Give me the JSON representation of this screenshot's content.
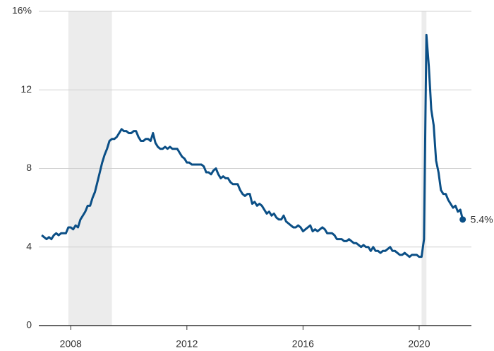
{
  "chart_data": {
    "type": "line",
    "x": [
      2007.0,
      2007.083,
      2007.167,
      2007.25,
      2007.333,
      2007.417,
      2007.5,
      2007.583,
      2007.667,
      2007.75,
      2007.833,
      2007.917,
      2008.0,
      2008.083,
      2008.167,
      2008.25,
      2008.333,
      2008.417,
      2008.5,
      2008.583,
      2008.667,
      2008.75,
      2008.833,
      2008.917,
      2009.0,
      2009.083,
      2009.167,
      2009.25,
      2009.333,
      2009.417,
      2009.5,
      2009.583,
      2009.667,
      2009.75,
      2009.833,
      2009.917,
      2010.0,
      2010.083,
      2010.167,
      2010.25,
      2010.333,
      2010.417,
      2010.5,
      2010.583,
      2010.667,
      2010.75,
      2010.833,
      2010.917,
      2011.0,
      2011.083,
      2011.167,
      2011.25,
      2011.333,
      2011.417,
      2011.5,
      2011.583,
      2011.667,
      2011.75,
      2011.833,
      2011.917,
      2012.0,
      2012.083,
      2012.167,
      2012.25,
      2012.333,
      2012.417,
      2012.5,
      2012.583,
      2012.667,
      2012.75,
      2012.833,
      2012.917,
      2013.0,
      2013.083,
      2013.167,
      2013.25,
      2013.333,
      2013.417,
      2013.5,
      2013.583,
      2013.667,
      2013.75,
      2013.833,
      2013.917,
      2014.0,
      2014.083,
      2014.167,
      2014.25,
      2014.333,
      2014.417,
      2014.5,
      2014.583,
      2014.667,
      2014.75,
      2014.833,
      2014.917,
      2015.0,
      2015.083,
      2015.167,
      2015.25,
      2015.333,
      2015.417,
      2015.5,
      2015.583,
      2015.667,
      2015.75,
      2015.833,
      2015.917,
      2016.0,
      2016.083,
      2016.167,
      2016.25,
      2016.333,
      2016.417,
      2016.5,
      2016.583,
      2016.667,
      2016.75,
      2016.833,
      2016.917,
      2017.0,
      2017.083,
      2017.167,
      2017.25,
      2017.333,
      2017.417,
      2017.5,
      2017.583,
      2017.667,
      2017.75,
      2017.833,
      2017.917,
      2018.0,
      2018.083,
      2018.167,
      2018.25,
      2018.333,
      2018.417,
      2018.5,
      2018.583,
      2018.667,
      2018.75,
      2018.833,
      2018.917,
      2019.0,
      2019.083,
      2019.167,
      2019.25,
      2019.333,
      2019.417,
      2019.5,
      2019.583,
      2019.667,
      2019.75,
      2019.833,
      2019.917,
      2020.0,
      2020.083,
      2020.167,
      2020.25,
      2020.333,
      2020.417,
      2020.5,
      2020.583,
      2020.667,
      2020.75,
      2020.833,
      2020.917,
      2021.0,
      2021.083,
      2021.167,
      2021.25,
      2021.333,
      2021.417,
      2021.5
    ],
    "series": [
      {
        "color": "#0b4f86",
        "values": [
          4.6,
          4.5,
          4.4,
          4.5,
          4.4,
          4.6,
          4.7,
          4.6,
          4.7,
          4.7,
          4.7,
          5.0,
          5.0,
          4.9,
          5.1,
          5.0,
          5.4,
          5.6,
          5.8,
          6.1,
          6.1,
          6.5,
          6.8,
          7.3,
          7.8,
          8.3,
          8.7,
          9.0,
          9.4,
          9.5,
          9.5,
          9.6,
          9.8,
          10.0,
          9.9,
          9.9,
          9.8,
          9.8,
          9.9,
          9.9,
          9.6,
          9.4,
          9.4,
          9.5,
          9.5,
          9.4,
          9.8,
          9.3,
          9.1,
          9.0,
          9.0,
          9.1,
          9.0,
          9.1,
          9.0,
          9.0,
          9.0,
          8.8,
          8.6,
          8.5,
          8.3,
          8.3,
          8.2,
          8.2,
          8.2,
          8.2,
          8.2,
          8.1,
          7.8,
          7.8,
          7.7,
          7.9,
          8.0,
          7.7,
          7.5,
          7.6,
          7.5,
          7.5,
          7.3,
          7.2,
          7.2,
          7.2,
          6.9,
          6.7,
          6.6,
          6.7,
          6.7,
          6.2,
          6.3,
          6.1,
          6.2,
          6.1,
          5.9,
          5.7,
          5.8,
          5.6,
          5.7,
          5.5,
          5.4,
          5.4,
          5.6,
          5.3,
          5.2,
          5.1,
          5.0,
          5.0,
          5.1,
          5.0,
          4.8,
          4.9,
          5.0,
          5.1,
          4.8,
          4.9,
          4.8,
          4.9,
          5.0,
          4.9,
          4.7,
          4.7,
          4.7,
          4.6,
          4.4,
          4.4,
          4.4,
          4.3,
          4.3,
          4.4,
          4.3,
          4.2,
          4.2,
          4.1,
          4.0,
          4.1,
          4.0,
          4.0,
          3.8,
          4.0,
          3.8,
          3.8,
          3.7,
          3.8,
          3.8,
          3.9,
          4.0,
          3.8,
          3.8,
          3.7,
          3.6,
          3.6,
          3.7,
          3.6,
          3.5,
          3.6,
          3.6,
          3.6,
          3.5,
          3.5,
          4.4,
          14.8,
          13.2,
          11.0,
          10.2,
          8.4,
          7.8,
          6.9,
          6.7,
          6.7,
          6.4,
          6.2,
          6.0,
          6.1,
          5.8,
          5.9,
          5.4
        ]
      }
    ],
    "annotation": {
      "x": 2021.5,
      "value": 5.4,
      "label": "5.4%"
    },
    "shaded_regions": [
      [
        2007.917,
        2009.417
      ],
      [
        2020.083,
        2020.25
      ]
    ],
    "shade_color": "#ececec",
    "xlim": [
      2006.9,
      2021.8
    ],
    "xticks": [
      2008,
      2012,
      2016,
      2020
    ],
    "ylim": [
      0,
      16
    ],
    "yticks": [
      0,
      4,
      8,
      12,
      {
        "value": 16,
        "label": "16%"
      }
    ],
    "grid": true
  }
}
